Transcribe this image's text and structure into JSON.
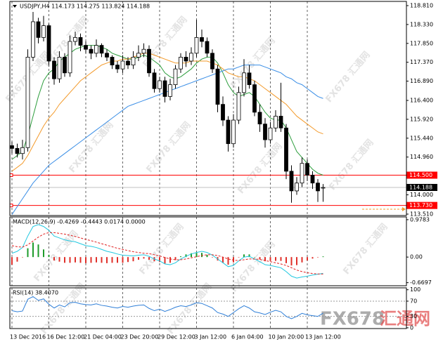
{
  "chart_data": [
    {
      "type": "candlestick",
      "title": "USDJPY,H4 114.173 114.275 113.824 114.188",
      "categories": [
        "13 Dec 2016",
        null,
        null,
        null,
        null,
        null,
        null,
        "16 Dec 12:00",
        null,
        null,
        null,
        null,
        null,
        null,
        "21 Dec 04:00",
        null,
        null,
        null,
        null,
        null,
        null,
        "23 Dec 20:00",
        null,
        null,
        null,
        null,
        null,
        null,
        "29 Dec 12:00",
        null,
        null,
        null,
        null,
        null,
        null,
        "3 Jan 12:00",
        null,
        null,
        null,
        null,
        null,
        null,
        "6 Jan 04:00",
        null,
        null,
        null,
        null,
        null,
        null,
        "10 Jan 20:00",
        null,
        null,
        null,
        null,
        null,
        null,
        "13 Jan 12:00",
        null,
        null,
        null
      ],
      "open": [
        115.25,
        115.18,
        115.05,
        115.2,
        117.5,
        118.4,
        118.0,
        118.3,
        117.4,
        116.95,
        117.5,
        117.1,
        117.9,
        118.0,
        117.8,
        117.7,
        117.6,
        117.8,
        117.6,
        117.5,
        117.3,
        117.2,
        117.4,
        117.3,
        117.5,
        117.6,
        117.7,
        117.1,
        116.7,
        116.9,
        116.5,
        116.8,
        117.2,
        117.5,
        117.4,
        117.6,
        118.0,
        117.9,
        117.6,
        117.2,
        116.3,
        115.9,
        115.3,
        115.9,
        116.6,
        117.1,
        116.8,
        116.1,
        115.8,
        115.4,
        115.7,
        116.0,
        115.7,
        114.6,
        114.1,
        114.3,
        114.8,
        114.5,
        114.3,
        114.173
      ],
      "high": [
        115.35,
        115.3,
        115.4,
        117.7,
        118.65,
        118.5,
        118.55,
        118.35,
        117.5,
        117.65,
        117.6,
        118.05,
        118.15,
        118.1,
        117.9,
        117.8,
        117.95,
        117.85,
        117.7,
        117.55,
        117.4,
        117.55,
        117.5,
        117.65,
        117.8,
        117.85,
        117.8,
        117.2,
        117.0,
        117.0,
        116.95,
        117.3,
        117.6,
        117.65,
        117.75,
        118.45,
        118.2,
        118.0,
        117.7,
        117.3,
        116.5,
        116.0,
        116.05,
        116.75,
        117.45,
        117.3,
        116.9,
        116.3,
        115.95,
        115.85,
        116.15,
        116.85,
        115.8,
        114.75,
        114.45,
        114.95,
        114.9,
        114.6,
        114.4,
        114.275
      ],
      "low": [
        115.05,
        114.95,
        114.9,
        115.1,
        117.4,
        117.85,
        117.9,
        117.3,
        116.8,
        116.85,
        117.0,
        117.0,
        117.8,
        117.65,
        117.6,
        117.45,
        117.5,
        117.5,
        117.4,
        117.2,
        117.1,
        117.1,
        117.2,
        117.2,
        117.4,
        117.5,
        117.0,
        116.6,
        116.6,
        116.35,
        116.4,
        116.7,
        117.1,
        117.25,
        117.3,
        117.5,
        117.75,
        117.5,
        117.1,
        116.1,
        115.75,
        115.1,
        115.2,
        115.8,
        116.5,
        116.7,
        116.0,
        115.6,
        115.2,
        115.3,
        115.6,
        115.6,
        114.4,
        113.8,
        114.0,
        114.2,
        114.35,
        114.15,
        113.82,
        113.824
      ],
      "close": [
        115.18,
        115.05,
        115.2,
        117.5,
        118.4,
        118.0,
        118.3,
        117.4,
        116.95,
        117.5,
        117.1,
        117.9,
        118.0,
        117.8,
        117.7,
        117.6,
        117.8,
        117.6,
        117.5,
        117.3,
        117.2,
        117.4,
        117.3,
        117.5,
        117.6,
        117.7,
        117.1,
        116.7,
        116.9,
        116.5,
        116.8,
        117.2,
        117.5,
        117.4,
        117.6,
        118.0,
        117.9,
        117.6,
        117.2,
        116.3,
        115.9,
        115.3,
        115.9,
        116.6,
        117.1,
        116.8,
        116.1,
        115.8,
        115.4,
        115.7,
        116.0,
        115.7,
        114.6,
        114.1,
        114.3,
        114.8,
        114.5,
        114.3,
        114.1,
        114.188
      ],
      "candle_colors": {
        "up": "#ffffff",
        "down": "#000000",
        "outline": "#000000"
      },
      "moving_averages": [
        {
          "color": "#2e9e3e",
          "values": [
            114.9,
            115.0,
            115.1,
            115.5,
            116.0,
            116.5,
            116.9,
            117.1,
            117.2,
            117.4,
            117.5,
            117.6,
            117.7,
            117.75,
            117.8,
            117.8,
            117.8,
            117.75,
            117.7,
            117.6,
            117.55,
            117.5,
            117.45,
            117.45,
            117.5,
            117.55,
            117.5,
            117.4,
            117.3,
            117.1,
            117.0,
            116.95,
            117.0,
            117.1,
            117.2,
            117.35,
            117.45,
            117.5,
            117.5,
            117.35,
            117.1,
            116.8,
            116.6,
            116.5,
            116.55,
            116.6,
            116.5,
            116.3,
            116.1,
            115.95,
            115.9,
            115.9,
            115.7,
            115.4,
            115.1,
            114.95,
            114.8,
            114.65,
            114.55,
            114.5
          ]
        },
        {
          "color": "#f39a2b",
          "values": [
            114.6,
            114.7,
            114.8,
            115.0,
            115.25,
            115.5,
            115.75,
            115.95,
            116.1,
            116.3,
            116.45,
            116.6,
            116.75,
            116.9,
            117.0,
            117.1,
            117.2,
            117.3,
            117.35,
            117.4,
            117.4,
            117.45,
            117.45,
            117.5,
            117.55,
            117.6,
            117.6,
            117.55,
            117.5,
            117.45,
            117.4,
            117.35,
            117.35,
            117.35,
            117.4,
            117.4,
            117.4,
            117.4,
            117.35,
            117.3,
            117.2,
            117.1,
            117.05,
            117.0,
            117.0,
            116.95,
            116.9,
            116.8,
            116.7,
            116.6,
            116.5,
            116.4,
            116.3,
            116.15,
            116.0,
            115.9,
            115.8,
            115.7,
            115.6,
            115.55
          ]
        },
        {
          "color": "#3a8ee6",
          "values": [
            113.5,
            113.7,
            113.9,
            114.1,
            114.3,
            114.45,
            114.6,
            114.75,
            114.85,
            114.95,
            115.05,
            115.15,
            115.25,
            115.35,
            115.45,
            115.55,
            115.65,
            115.75,
            115.85,
            115.95,
            116.05,
            116.15,
            116.25,
            116.3,
            116.35,
            116.4,
            116.45,
            116.5,
            116.55,
            116.6,
            116.65,
            116.7,
            116.75,
            116.8,
            116.85,
            116.9,
            116.95,
            117.0,
            117.05,
            117.1,
            117.15,
            117.2,
            117.2,
            117.25,
            117.3,
            117.3,
            117.3,
            117.3,
            117.25,
            117.2,
            117.15,
            117.1,
            117.0,
            116.95,
            116.85,
            116.8,
            116.7,
            116.6,
            116.5,
            116.45
          ]
        }
      ],
      "levels": [
        {
          "value": 114.5,
          "label": "114.500",
          "color": "#ff0000"
        },
        {
          "value": 114.188,
          "label": "114.188",
          "color": "#000000",
          "line_color": "#c0c0c0"
        },
        {
          "value": 113.73,
          "label": "113.730",
          "color": "#ff0000"
        }
      ],
      "ylim": [
        113.474,
        118.917
      ],
      "yticks": [
        {
          "value": 118.81,
          "label": "118.810"
        },
        {
          "value": 118.33,
          "label": "118.330"
        },
        {
          "value": 117.85,
          "label": "117.850"
        },
        {
          "value": 117.37,
          "label": "117.370"
        },
        {
          "value": 116.89,
          "label": "116.890"
        },
        {
          "value": 116.4,
          "label": "116.400"
        },
        {
          "value": 115.92,
          "label": "115.920"
        },
        {
          "value": 115.44,
          "label": "115.440"
        },
        {
          "value": 114.96,
          "label": "114.960"
        },
        {
          "value": 114.0,
          "label": "114.000"
        },
        {
          "value": 113.51,
          "label": "113.510"
        }
      ],
      "grid": true,
      "watermark": "FX678 汇通网",
      "brand": "FX678",
      "brand_cn": "汇通网"
    },
    {
      "type": "macd",
      "title": "MACD(12,26,9) -0.4269 -0.4443 0.0174 0.0000",
      "ylim": [
        -0.75,
        1.05
      ],
      "yticks": [
        0.9783,
        {
          "value": 0,
          "label": "0.00"
        },
        -0.6697
      ],
      "macd": {
        "color": "#22c8e0",
        "values": [
          0.1,
          0.15,
          0.25,
          0.55,
          0.8,
          0.85,
          0.8,
          0.7,
          0.55,
          0.5,
          0.45,
          0.42,
          0.4,
          0.35,
          0.3,
          0.28,
          0.25,
          0.2,
          0.15,
          0.12,
          0.08,
          0.05,
          0.04,
          0.03,
          0.05,
          0.06,
          0.02,
          -0.05,
          -0.1,
          -0.18,
          -0.2,
          -0.15,
          -0.05,
          0.02,
          0.08,
          0.12,
          0.15,
          0.12,
          0.05,
          -0.05,
          -0.15,
          -0.25,
          -0.22,
          -0.1,
          0.0,
          0.02,
          -0.05,
          -0.12,
          -0.2,
          -0.22,
          -0.25,
          -0.28,
          -0.38,
          -0.5,
          -0.55,
          -0.52,
          -0.5,
          -0.47,
          -0.45,
          -0.4269
        ]
      },
      "signal": {
        "color": "#e02020",
        "values": [
          0.3,
          0.27,
          0.26,
          0.32,
          0.42,
          0.52,
          0.6,
          0.64,
          0.64,
          0.62,
          0.6,
          0.57,
          0.54,
          0.5,
          0.46,
          0.43,
          0.39,
          0.35,
          0.31,
          0.27,
          0.23,
          0.2,
          0.17,
          0.14,
          0.12,
          0.1,
          0.09,
          0.06,
          0.03,
          -0.01,
          -0.05,
          -0.07,
          -0.07,
          -0.05,
          -0.02,
          0.01,
          0.04,
          0.06,
          0.06,
          0.04,
          0.0,
          -0.05,
          -0.08,
          -0.09,
          -0.07,
          -0.05,
          -0.05,
          -0.06,
          -0.09,
          -0.12,
          -0.15,
          -0.18,
          -0.22,
          -0.28,
          -0.34,
          -0.38,
          -0.41,
          -0.43,
          -0.44,
          -0.4443
        ]
      },
      "histogram": {
        "positive_color": "#1e9b2a",
        "negative_color": "#e0302a",
        "values": [
          -0.2,
          -0.12,
          -0.01,
          0.23,
          0.38,
          0.33,
          0.2,
          0.06,
          -0.09,
          -0.12,
          -0.15,
          -0.15,
          -0.14,
          -0.15,
          -0.16,
          -0.15,
          -0.14,
          -0.15,
          -0.16,
          -0.15,
          -0.15,
          -0.15,
          -0.13,
          -0.11,
          -0.07,
          -0.04,
          -0.07,
          -0.11,
          -0.13,
          -0.17,
          -0.15,
          -0.08,
          0.02,
          0.07,
          0.1,
          0.11,
          0.11,
          0.06,
          -0.01,
          -0.09,
          -0.15,
          -0.2,
          -0.14,
          -0.01,
          0.07,
          0.07,
          0.0,
          -0.06,
          -0.11,
          -0.1,
          -0.1,
          -0.1,
          -0.16,
          -0.22,
          -0.21,
          -0.14,
          -0.09,
          -0.04,
          -0.01,
          0.0174
        ]
      }
    },
    {
      "type": "rsi",
      "title": "RSI(14) 38.4070",
      "ylim": [
        -2,
        105
      ],
      "yticks": [
        100,
        70,
        30,
        0
      ],
      "levels": [
        70,
        30
      ],
      "color": "#2f7fd8",
      "values": [
        45,
        42,
        44,
        75,
        82,
        72,
        76,
        62,
        52,
        60,
        55,
        66,
        67,
        63,
        61,
        60,
        63,
        59,
        57,
        54,
        52,
        56,
        54,
        57,
        59,
        60,
        51,
        45,
        49,
        43,
        48,
        54,
        58,
        56,
        60,
        66,
        64,
        58,
        52,
        40,
        36,
        30,
        40,
        50,
        58,
        52,
        42,
        39,
        35,
        41,
        46,
        42,
        30,
        24,
        30,
        38,
        34,
        32,
        30,
        38.407
      ]
    }
  ]
}
